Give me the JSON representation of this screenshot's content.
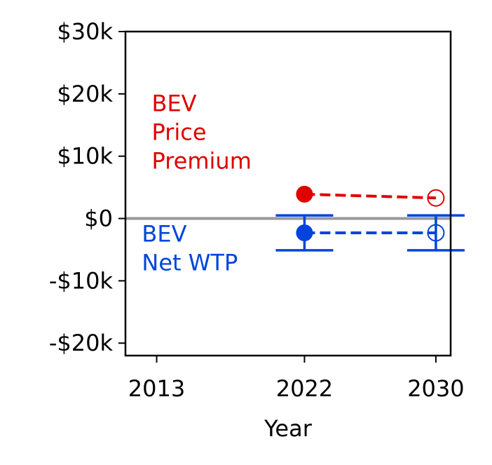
{
  "chart_data": {
    "type": "scatter",
    "title": "",
    "xlabel": "Year",
    "ylabel": "",
    "x_ticks": [
      2013,
      2022,
      2030
    ],
    "x_tick_labels": [
      "2013",
      "2022",
      "2030"
    ],
    "y_ticks": [
      -20000,
      -10000,
      0,
      10000,
      20000,
      30000
    ],
    "y_tick_labels": [
      "-$20k",
      "-$10k",
      "$0",
      "$10k",
      "$20k",
      "$30k"
    ],
    "xlim": [
      2011.1,
      2030.9
    ],
    "ylim": [
      -22000,
      30000
    ],
    "grid": false,
    "zero_line": {
      "value": 0,
      "color": "#999999"
    },
    "series": [
      {
        "name": "BEV Price Premium",
        "color": "#e00000",
        "points": [
          {
            "x": 2022,
            "y": 3900,
            "filled": true
          },
          {
            "x": 2030,
            "y": 3300,
            "filled": false
          }
        ]
      },
      {
        "name": "BEV Net WTP",
        "color": "#0044dd",
        "points": [
          {
            "x": 2022,
            "y": -2300,
            "filled": true,
            "err_low": -5100,
            "err_high": 500
          },
          {
            "x": 2030,
            "y": -2300,
            "filled": false,
            "err_low": -5100,
            "err_high": 500
          }
        ]
      }
    ],
    "annotations": [
      {
        "lines": [
          "BEV",
          "Price",
          "Premium"
        ],
        "color": "#e00000",
        "x": 2012.7,
        "y": 17200
      },
      {
        "lines": [
          "BEV",
          "Net WTP"
        ],
        "color": "#0044dd",
        "x": 2012.1,
        "y": -3700
      }
    ]
  }
}
